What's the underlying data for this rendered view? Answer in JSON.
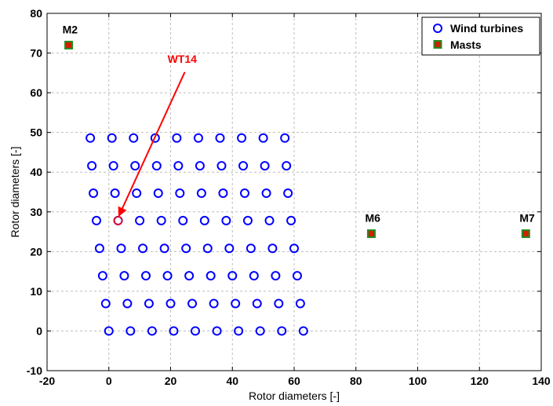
{
  "chart_data": {
    "type": "scatter",
    "xlabel": "Rotor diameters [-]",
    "ylabel": "Rotor diameters [-]",
    "xlim": [
      -20,
      140
    ],
    "ylim": [
      -10,
      80
    ],
    "xticks": [
      -20,
      0,
      20,
      40,
      60,
      80,
      100,
      120,
      140
    ],
    "yticks": [
      -10,
      0,
      10,
      20,
      30,
      40,
      50,
      60,
      70,
      80
    ],
    "grid": true,
    "legend_position": "top-right",
    "series": [
      {
        "name": "Wind turbines",
        "marker": "open-circle",
        "color": "#0000ff",
        "rows": [
          {
            "y": 0,
            "x": [
              0,
              7,
              14,
              21,
              28,
              35,
              42,
              49,
              56,
              63
            ]
          },
          {
            "y": 6.9,
            "x": [
              -1,
              6,
              13,
              20,
              27,
              34,
              41,
              48,
              55,
              62
            ]
          },
          {
            "y": 13.9,
            "x": [
              -2,
              5,
              12,
              19,
              26,
              33,
              40,
              47,
              54,
              61
            ]
          },
          {
            "y": 20.8,
            "x": [
              -3,
              4,
              11,
              18,
              25,
              32,
              39,
              46,
              53,
              60
            ]
          },
          {
            "y": 27.8,
            "x": [
              -4,
              3,
              10,
              17,
              24,
              31,
              38,
              45,
              52,
              59
            ]
          },
          {
            "y": 34.7,
            "x": [
              -5,
              2,
              9,
              16,
              23,
              30,
              37,
              44,
              51,
              58
            ]
          },
          {
            "y": 41.6,
            "x": [
              -5.5,
              1.5,
              8.5,
              15.5,
              22.5,
              29.5,
              36.5,
              43.5,
              50.5,
              57.5
            ]
          },
          {
            "y": 48.6,
            "x": [
              -6,
              1,
              8,
              15,
              22,
              29,
              36,
              43,
              50,
              57
            ]
          }
        ]
      },
      {
        "name": "Masts",
        "marker": "square",
        "fill": "#cc2200",
        "edge": "#228b22",
        "points": [
          {
            "label": "M2",
            "x": -13,
            "y": 72
          },
          {
            "label": "M6",
            "x": 85,
            "y": 24.5
          },
          {
            "label": "M7",
            "x": 135,
            "y": 24.5
          }
        ]
      }
    ],
    "annotations": [
      {
        "text": "WT14",
        "color": "#ff0000",
        "target": {
          "x": 3,
          "y": 27.8
        },
        "label_at": {
          "x": 19,
          "y": 66
        }
      }
    ]
  }
}
